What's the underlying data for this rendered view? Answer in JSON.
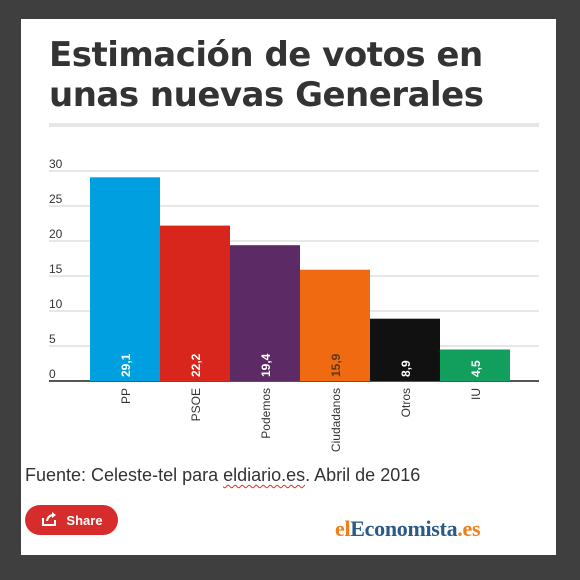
{
  "title": "Estimación de votos en unas nuevas Generales",
  "chart_data": {
    "type": "bar",
    "categories": [
      "PP",
      "PSOE",
      "Podemos",
      "Ciudadanos",
      "Otros",
      "IU"
    ],
    "values": [
      29.1,
      22.2,
      19.4,
      15.9,
      8.9,
      4.5
    ],
    "value_labels": [
      "29,1",
      "22,2",
      "19,4",
      "15,9",
      "8,9",
      "4,5"
    ],
    "colors": [
      "#00a0e0",
      "#d9261c",
      "#5c2a64",
      "#f06a12",
      "#111111",
      "#129e5c"
    ],
    "label_colors": [
      "#ffffff",
      "#ffffff",
      "#ffffff",
      "#5b3a17",
      "#ffffff",
      "#ffffff"
    ],
    "yticks": [
      0,
      5,
      10,
      15,
      20,
      25,
      30
    ],
    "ylim": [
      0,
      30
    ],
    "grid": true,
    "title": "Estimación de votos en unas nuevas Generales",
    "xlabel": "",
    "ylabel": ""
  },
  "source": {
    "prefix": "Fuente:  Celeste-tel para ",
    "link": "eldiario.es",
    "suffix": ". Abril de 2016"
  },
  "share": {
    "label": "Share",
    "icon": "share-icon"
  },
  "logo": {
    "part1": "el",
    "part2": "Economista",
    "part3": ".es"
  }
}
